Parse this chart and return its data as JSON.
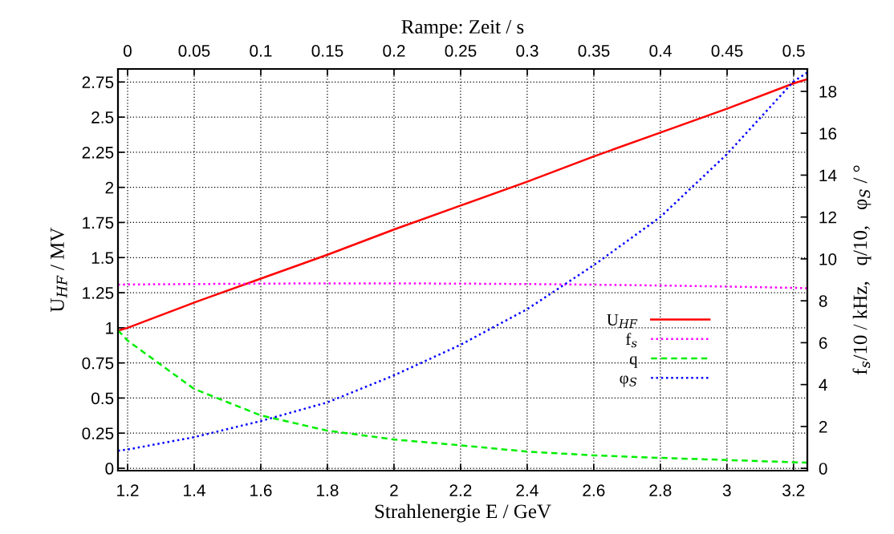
{
  "chart_data": {
    "type": "line",
    "xlabel": "Strahlenergie E / GeV",
    "ylabel": "U$_{HF}$ / MV",
    "y2label": "f$_{s}$/10 / kHz,   q/10,   φ$_{S}$ / °",
    "x2label": "Rampe: Zeit / s",
    "x": [
      1.171,
      1.2,
      1.4,
      1.6,
      1.8,
      2.0,
      2.2,
      2.4,
      2.6,
      2.8,
      3.0,
      3.2,
      3.2415
    ],
    "series": [
      {
        "name": "U$_{HF}$",
        "color": "#ff0000",
        "line_style": "solid",
        "values": [
          0.98,
          1.0,
          1.18,
          1.35,
          1.52,
          1.7,
          1.87,
          2.04,
          2.22,
          2.39,
          2.56,
          2.74,
          2.77
        ]
      },
      {
        "name": "f$_{s}$",
        "color": "#ff00ff",
        "line_style": "dotted",
        "axis": "y2",
        "values": [
          8.77,
          8.78,
          8.8,
          8.82,
          8.83,
          8.83,
          8.82,
          8.8,
          8.77,
          8.73,
          8.68,
          8.62,
          8.6
        ]
      },
      {
        "name": "q",
        "color": "#00ee00",
        "line_style": "dashed",
        "axis": "y2",
        "values": [
          6.59,
          6.1,
          3.79,
          2.53,
          1.8,
          1.38,
          1.1,
          0.8,
          0.62,
          0.5,
          0.4,
          0.29,
          0.27
        ]
      },
      {
        "name": "φ$_{S}$",
        "color": "#0000ff",
        "line_style": "dotted",
        "axis": "y2",
        "values": [
          0.84,
          0.9,
          1.49,
          2.26,
          3.15,
          4.44,
          5.9,
          7.6,
          9.7,
          12.0,
          15.0,
          18.47,
          18.9
        ]
      }
    ],
    "xlim": [
      1.171,
      3.2415
    ],
    "xticks": [
      1.2,
      1.4,
      1.6,
      1.8,
      2,
      2.2,
      2.4,
      2.6,
      2.8,
      3,
      3.2
    ],
    "x2lim": [
      -0.0072,
      0.5102
    ],
    "x2ticks": [
      0,
      0.05,
      0.1,
      0.15,
      0.2,
      0.25,
      0.3,
      0.35,
      0.4,
      0.45,
      0.5
    ],
    "ylim": [
      -0.017,
      2.843
    ],
    "yticks": [
      0,
      0.25,
      0.5,
      0.75,
      1,
      1.25,
      1.5,
      1.75,
      2,
      2.25,
      2.5,
      2.75
    ],
    "y2lim": [
      -0.11,
      19.07
    ],
    "y2ticks": [
      0,
      2,
      4,
      6,
      8,
      10,
      12,
      14,
      16,
      18
    ],
    "grid": true,
    "legend": "bottom right"
  }
}
